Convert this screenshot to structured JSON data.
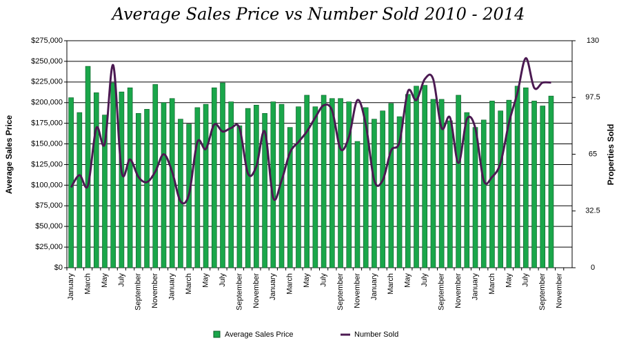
{
  "chart_data": {
    "type": "bar_line",
    "title": "Average Sales Price vs Number Sold 2010 - 2014",
    "y_label": "Average Sales Price",
    "y2_label": "Properties Sold",
    "categories": [
      "January",
      null,
      "March",
      null,
      "May",
      null,
      "July",
      null,
      "September",
      null,
      "November",
      null,
      "January",
      null,
      "March",
      null,
      "May",
      null,
      "July",
      null,
      "September",
      null,
      "November",
      null,
      "January",
      null,
      "March",
      null,
      "May",
      null,
      "July",
      null,
      "September",
      null,
      "November",
      null,
      "January",
      null,
      "March",
      null,
      "May",
      null,
      "July",
      null,
      "September",
      null,
      "November",
      null,
      "January",
      null,
      "March",
      null,
      "May",
      null,
      "July",
      null,
      "September",
      null,
      "November",
      null
    ],
    "series": [
      {
        "name": "Average Sales Price",
        "color": "#1aa64a",
        "type": "bar",
        "values": [
          206000,
          188000,
          244000,
          212000,
          185000,
          224000,
          213000,
          218000,
          187000,
          192000,
          222000,
          200000,
          205000,
          180000,
          174000,
          194000,
          198000,
          218000,
          224000,
          201000,
          172000,
          193000,
          197000,
          187000,
          201000,
          198000,
          170000,
          195000,
          209000,
          195000,
          209000,
          205000,
          205000,
          201000,
          153000,
          194000,
          180000,
          190000,
          199000,
          183000,
          210000,
          220000,
          221000,
          204000,
          204000,
          178000,
          209000,
          188000,
          170000,
          179000,
          202000,
          190000,
          203000,
          220000,
          218000,
          202000,
          196000,
          208000,
          null,
          null
        ]
      },
      {
        "name": "Number Sold",
        "color": "#4b1a52",
        "type": "line",
        "axis": "y2",
        "values": [
          46,
          53,
          47,
          80,
          71,
          116,
          55,
          62,
          52,
          49,
          55,
          65,
          55,
          38,
          42,
          72,
          68,
          82,
          78,
          80,
          80,
          54,
          58,
          78,
          40,
          50,
          66,
          72,
          78,
          86,
          93,
          90,
          68,
          75,
          96,
          82,
          50,
          50,
          67,
          72,
          101,
          96,
          108,
          108,
          80,
          86,
          60,
          85,
          80,
          50,
          52,
          60,
          83,
          100,
          120,
          103,
          106,
          106,
          null,
          null
        ]
      }
    ],
    "ylim": [
      0,
      275000
    ],
    "yticks": [
      {
        "value": 0,
        "label": "$0"
      },
      {
        "value": 25000,
        "label": "$25,000"
      },
      {
        "value": 50000,
        "label": "$50,000"
      },
      {
        "value": 75000,
        "label": "$75,000"
      },
      {
        "value": 100000,
        "label": "$100,000"
      },
      {
        "value": 125000,
        "label": "$125,000"
      },
      {
        "value": 150000,
        "label": "$150,000"
      },
      {
        "value": 175000,
        "label": "$175,000"
      },
      {
        "value": 200000,
        "label": "$200,000"
      },
      {
        "value": 225000,
        "label": "$225,000"
      },
      {
        "value": 250000,
        "label": "$250,000"
      },
      {
        "value": 275000,
        "label": "$275,000"
      }
    ],
    "y2lim": [
      0,
      130
    ],
    "y2ticks": [
      0,
      32.5,
      65,
      97.5,
      130
    ],
    "grid": true,
    "legend": "bottom"
  }
}
